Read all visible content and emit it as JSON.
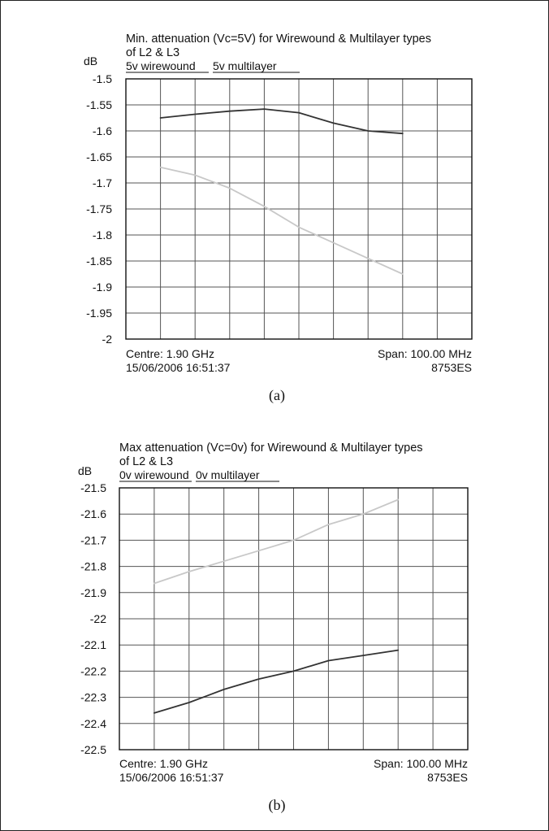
{
  "chart_data": [
    {
      "type": "line",
      "title": "Min. attenuation (Vc=5V) for Wirewound & Multilayer types",
      "title_line2": "of L2 & L3",
      "ylabel": "dB",
      "ylim": [
        -2,
        -1.5
      ],
      "yticks": [
        "-1.5",
        "-1.55",
        "-1.6",
        "-1.65",
        "-1.7",
        "-1.75",
        "-1.8",
        "-1.85",
        "-1.9",
        "-1.95",
        "-2"
      ],
      "ytick_values": [
        -1.5,
        -1.55,
        -1.6,
        -1.65,
        -1.7,
        -1.75,
        -1.8,
        -1.85,
        -1.9,
        -1.95,
        -2
      ],
      "grid": true,
      "x_divisions": 10,
      "legend": [
        "5v wirewound",
        "5v multilayer"
      ],
      "centre_label": "Centre: 1.90 GHz",
      "span_label": "Span: 100.00 MHz",
      "timestamp": "15/06/2006 16:51:37",
      "instrument": "8753ES",
      "caption": "(a)",
      "series": [
        {
          "name": "5v wirewound",
          "color": "#333333",
          "x": [
            1,
            2,
            3,
            4,
            5,
            6,
            7,
            8
          ],
          "values": [
            -1.575,
            -1.568,
            -1.562,
            -1.558,
            -1.565,
            -1.585,
            -1.6,
            -1.605
          ]
        },
        {
          "name": "5v multilayer",
          "color": "#c8c8c8",
          "x": [
            1,
            2,
            3,
            4,
            5,
            6,
            7,
            8
          ],
          "values": [
            -1.67,
            -1.685,
            -1.71,
            -1.745,
            -1.785,
            -1.815,
            -1.845,
            -1.875
          ]
        }
      ]
    },
    {
      "type": "line",
      "title": "Max attenuation (Vc=0v) for Wirewound & Multilayer types",
      "title_line2": "of L2 & L3",
      "ylabel": "dB",
      "ylim": [
        -22.5,
        -21.5
      ],
      "yticks": [
        "-21.5",
        "-21.6",
        "-21.7",
        "-21.8",
        "-21.9",
        "-22",
        "-22.1",
        "-22.2",
        "-22.3",
        "-22.4",
        "-22.5"
      ],
      "ytick_values": [
        -21.5,
        -21.6,
        -21.7,
        -21.8,
        -21.9,
        -22,
        -22.1,
        -22.2,
        -22.3,
        -22.4,
        -22.5
      ],
      "grid": true,
      "x_divisions": 10,
      "legend": [
        "0v wirewound",
        "0v multilayer"
      ],
      "centre_label": "Centre: 1.90 GHz",
      "span_label": "Span: 100.00 MHz",
      "timestamp": "15/06/2006 16:51:37",
      "instrument": "8753ES",
      "caption": "(b)",
      "series": [
        {
          "name": "0v wirewound",
          "color": "#333333",
          "x": [
            1,
            2,
            3,
            4,
            5,
            6,
            7,
            8
          ],
          "values": [
            -22.36,
            -22.32,
            -22.27,
            -22.23,
            -22.2,
            -22.16,
            -22.14,
            -22.12
          ]
        },
        {
          "name": "0v multilayer",
          "color": "#c8c8c8",
          "x": [
            1,
            2,
            3,
            4,
            5,
            6,
            7,
            8
          ],
          "values": [
            -21.865,
            -21.82,
            -21.78,
            -21.74,
            -21.7,
            -21.64,
            -21.6,
            -21.545
          ]
        }
      ]
    }
  ]
}
